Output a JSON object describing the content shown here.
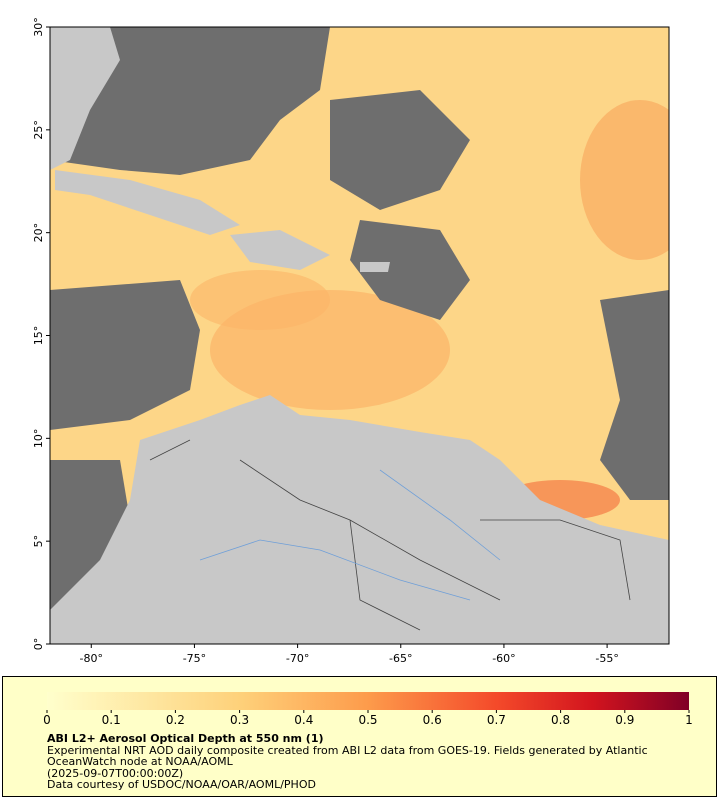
{
  "chart_data": {
    "type": "map",
    "title": "ABI L2+ Aerosol Optical Depth at 550 nm (1)",
    "description": "Experimental NRT AOD daily composite created from ABI L2 data from GOES-19. Fields generated by Atlantic OceanWatch node at NOAA/AOML",
    "date": "(2025-09-07T00:00:00Z)",
    "credit": "Data courtesy of USDOC/NOAA/OAR/AOML/PHOD",
    "xlim": [
      -82,
      -52
    ],
    "ylim": [
      0,
      30
    ],
    "xticks": [
      {
        "value": -80,
        "label": "-80°"
      },
      {
        "value": -75,
        "label": "-75°"
      },
      {
        "value": -70,
        "label": "-70°"
      },
      {
        "value": -65,
        "label": "-65°"
      },
      {
        "value": -60,
        "label": "-60°"
      },
      {
        "value": -55,
        "label": "-55°"
      }
    ],
    "yticks": [
      {
        "value": 0,
        "label": "0°"
      },
      {
        "value": 5,
        "label": "5°"
      },
      {
        "value": 10,
        "label": "10°"
      },
      {
        "value": 15,
        "label": "15°"
      },
      {
        "value": 20,
        "label": "20°"
      },
      {
        "value": 25,
        "label": "25°"
      },
      {
        "value": 30,
        "label": "30°"
      }
    ],
    "colorbar": {
      "range": [
        0,
        1
      ],
      "ticks": [
        0,
        0.1,
        0.2,
        0.3,
        0.4,
        0.5,
        0.6,
        0.7,
        0.8,
        0.9,
        1
      ]
    }
  }
}
